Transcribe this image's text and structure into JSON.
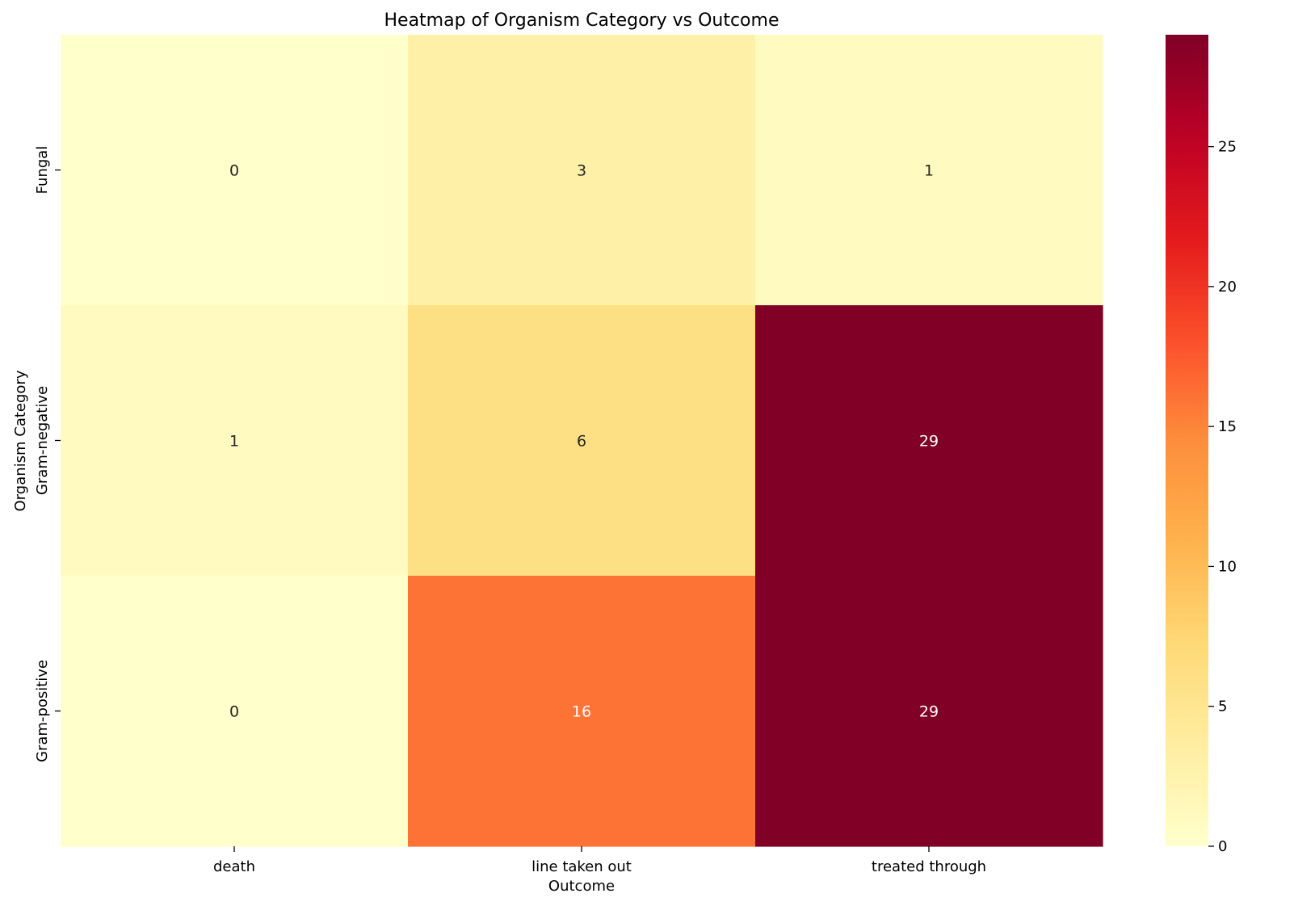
{
  "chart_data": {
    "type": "heatmap",
    "title": "Heatmap of Organism Category vs Outcome",
    "xlabel": "Outcome",
    "ylabel": "Organism Category",
    "x_categories": [
      "death",
      "line taken out",
      "treated through"
    ],
    "y_categories": [
      "Fungal",
      "Gram-negative",
      "Gram-positive"
    ],
    "values": [
      [
        0,
        3,
        1
      ],
      [
        1,
        6,
        29
      ],
      [
        0,
        16,
        29
      ]
    ],
    "colorbar": {
      "min": 0,
      "max": 29,
      "ticks": [
        0,
        5,
        10,
        15,
        20,
        25
      ],
      "colormap": "YlOrRd"
    },
    "annotation_colors": {
      "dark_text": "#262626",
      "light_text": "#ffffff"
    }
  }
}
